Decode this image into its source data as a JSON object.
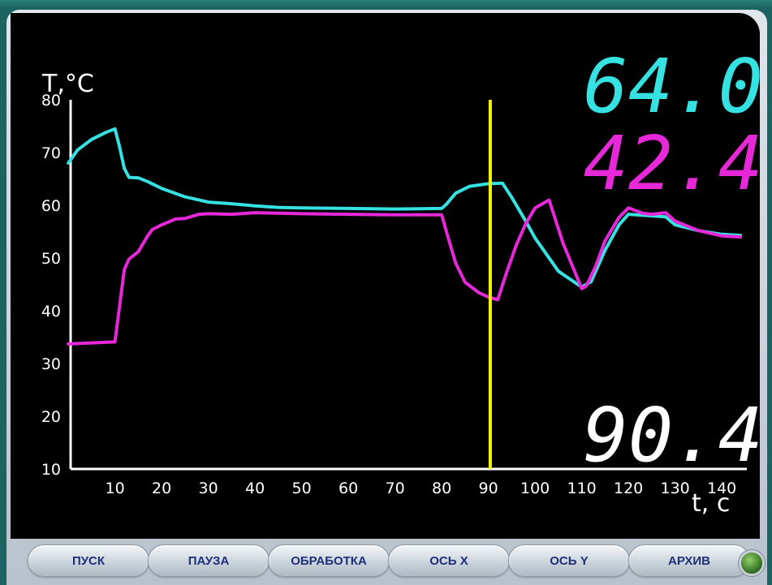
{
  "colors": {
    "series1": "#36e1e1",
    "series2": "#e628d8",
    "marker": "#f5f500",
    "axis": "#ffffff",
    "button_text": "#1f2f7a"
  },
  "window_controls": {
    "minimize_icon": "minimize-icon",
    "restore_icon": "restore-icon"
  },
  "readouts": {
    "value1": "64.0",
    "value2": "42.4",
    "cursor_time": "90.4"
  },
  "buttons": [
    {
      "label": "ПУСК"
    },
    {
      "label": "ПАУЗА"
    },
    {
      "label": "ОБРАБОТКА"
    },
    {
      "label": "ОСЬ X"
    },
    {
      "label": "ОСЬ Y"
    },
    {
      "label": "АРХИВ"
    }
  ],
  "chart_data": {
    "type": "line",
    "ylabel": "T,°C",
    "xlabel": "t, c",
    "xlim": [
      0,
      145
    ],
    "ylim": [
      10,
      80
    ],
    "xticks": [
      10,
      20,
      30,
      40,
      50,
      60,
      70,
      80,
      90,
      100,
      110,
      120,
      130,
      140
    ],
    "yticks": [
      10,
      20,
      30,
      40,
      50,
      60,
      70,
      80
    ],
    "grid": false,
    "cursor_x": 90.4,
    "series": [
      {
        "color": "#36e1e1",
        "x": [
          0,
          2,
          5,
          8,
          10,
          11,
          12,
          13,
          15,
          17,
          20,
          25,
          30,
          35,
          40,
          45,
          50,
          60,
          70,
          80,
          81,
          83,
          86,
          90,
          93,
          95,
          98,
          100,
          105,
          110,
          112,
          115,
          118,
          120,
          125,
          128,
          130,
          135,
          140,
          144
        ],
        "y": [
          68,
          70.5,
          72.5,
          73.8,
          74.5,
          71,
          67,
          65.3,
          65.2,
          64.5,
          63.2,
          61.6,
          60.6,
          60.3,
          59.9,
          59.6,
          59.5,
          59.4,
          59.3,
          59.4,
          60.2,
          62.3,
          63.6,
          64.1,
          64.2,
          61.5,
          57,
          53.8,
          47.5,
          44.5,
          45.5,
          51.5,
          56.3,
          58.3,
          58,
          57.8,
          56.3,
          55.2,
          54.5,
          54.3
        ]
      },
      {
        "color": "#e628d8",
        "x": [
          0,
          5,
          10,
          11,
          12,
          13,
          15,
          17,
          18,
          20,
          23,
          25,
          28,
          30,
          35,
          40,
          45,
          50,
          60,
          70,
          80,
          81,
          83,
          85,
          88,
          90,
          92,
          94,
          96,
          98,
          100,
          103,
          106,
          110,
          111,
          113,
          115,
          118,
          120,
          123,
          125,
          128,
          130,
          135,
          140,
          144
        ],
        "y": [
          33.7,
          33.9,
          34.1,
          41,
          47.8,
          49.8,
          51.2,
          54.2,
          55.4,
          56.3,
          57.4,
          57.5,
          58.3,
          58.4,
          58.3,
          58.6,
          58.5,
          58.4,
          58.3,
          58.2,
          58.2,
          55,
          49,
          45.4,
          43.4,
          42.6,
          42.1,
          47.5,
          52.5,
          56.5,
          59.5,
          61,
          52.8,
          44.2,
          44.7,
          48.5,
          53.3,
          57.7,
          59.5,
          58.5,
          58.3,
          58.6,
          57,
          55.2,
          54.2,
          54
        ]
      }
    ]
  }
}
